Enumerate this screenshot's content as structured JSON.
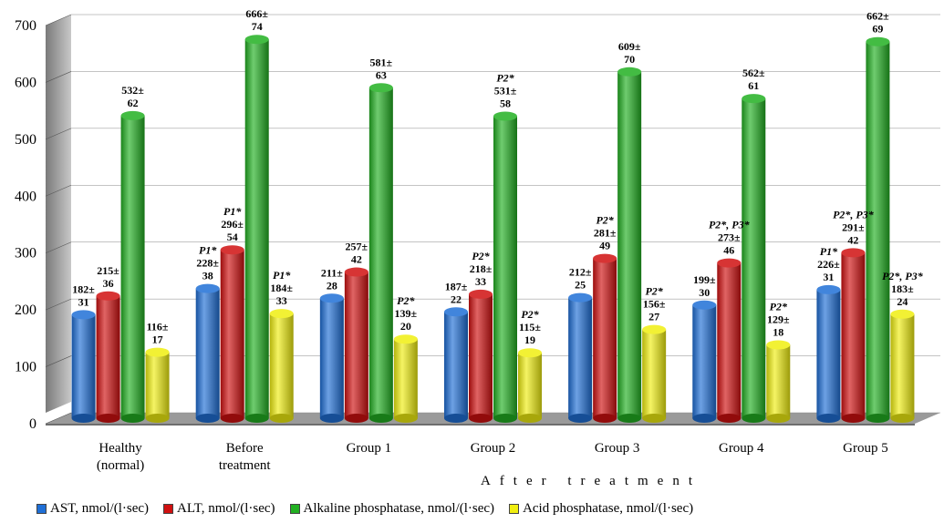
{
  "chart_data": {
    "type": "bar",
    "categories": [
      "Healthy\n(normal)",
      "Before\ntreatment",
      "Group 1",
      "Group 2",
      "Group 3",
      "Group 4",
      "Group 5"
    ],
    "group_label": "After treatment",
    "ylim": [
      0,
      700
    ],
    "yticks": [
      0,
      100,
      200,
      300,
      400,
      500,
      600,
      700
    ],
    "series": [
      {
        "name": "AST, nmol/(l·sec)",
        "color": "#1f6fd6",
        "values": [
          182,
          228,
          211,
          187,
          212,
          199,
          226
        ],
        "labels": [
          [
            "182±",
            "31"
          ],
          [
            "P1*",
            "228±",
            "38"
          ],
          [
            "211±",
            "28"
          ],
          [
            "187±",
            "22"
          ],
          [
            "212±",
            "25"
          ],
          [
            "199±",
            "30"
          ],
          [
            "P1*",
            "226±",
            "31"
          ]
        ]
      },
      {
        "name": "ALT, nmol/(l·sec)",
        "color": "#d01010",
        "values": [
          215,
          296,
          257,
          218,
          281,
          273,
          291
        ],
        "labels": [
          [
            "215±",
            "36"
          ],
          [
            "P1*",
            "296±",
            "54"
          ],
          [
            "257±",
            "42"
          ],
          [
            "P2*",
            "218±",
            "33"
          ],
          [
            "P2*",
            "281±",
            "49"
          ],
          [
            "P2*, P3*",
            "273±",
            "46"
          ],
          [
            "P2*, P3*",
            "291±",
            "42"
          ]
        ]
      },
      {
        "name": "Alkaline phosphatase, nmol/(l·sec)",
        "color": "#22b022",
        "values": [
          532,
          666,
          581,
          531,
          609,
          562,
          662
        ],
        "labels": [
          [
            "532±",
            "62"
          ],
          [
            "666±",
            "74"
          ],
          [
            "581±",
            "63"
          ],
          [
            "P2*",
            "531±",
            "58"
          ],
          [
            "609±",
            "70"
          ],
          [
            "562±",
            "61"
          ],
          [
            "662±",
            "69"
          ]
        ]
      },
      {
        "name": "Acid phosphatase, nmol/(l·sec)",
        "color": "#f0ee10",
        "values": [
          116,
          184,
          139,
          115,
          156,
          129,
          183
        ],
        "labels": [
          [
            "116±",
            "17"
          ],
          [
            "P1*",
            "184±",
            "33"
          ],
          [
            "P2*",
            "139±",
            "20"
          ],
          [
            "P2*",
            "115±",
            "19"
          ],
          [
            "P2*",
            "156±",
            "27"
          ],
          [
            "P2*",
            "129±",
            "18"
          ],
          [
            "P2*, P3*",
            "183±",
            "24"
          ]
        ]
      }
    ],
    "legend_position": "bottom",
    "grid": true
  },
  "legend": {
    "items": [
      {
        "label": "AST, nmol/(l·sec)",
        "color": "#1f6fd6"
      },
      {
        "label": "ALT, nmol/(l·sec)",
        "color": "#d01010"
      },
      {
        "label": "Alkaline phosphatase, nmol/(l·sec)",
        "color": "#22b022"
      },
      {
        "label": "Acid phosphatase, nmol/(l·sec)",
        "color": "#f0ee10"
      }
    ]
  }
}
